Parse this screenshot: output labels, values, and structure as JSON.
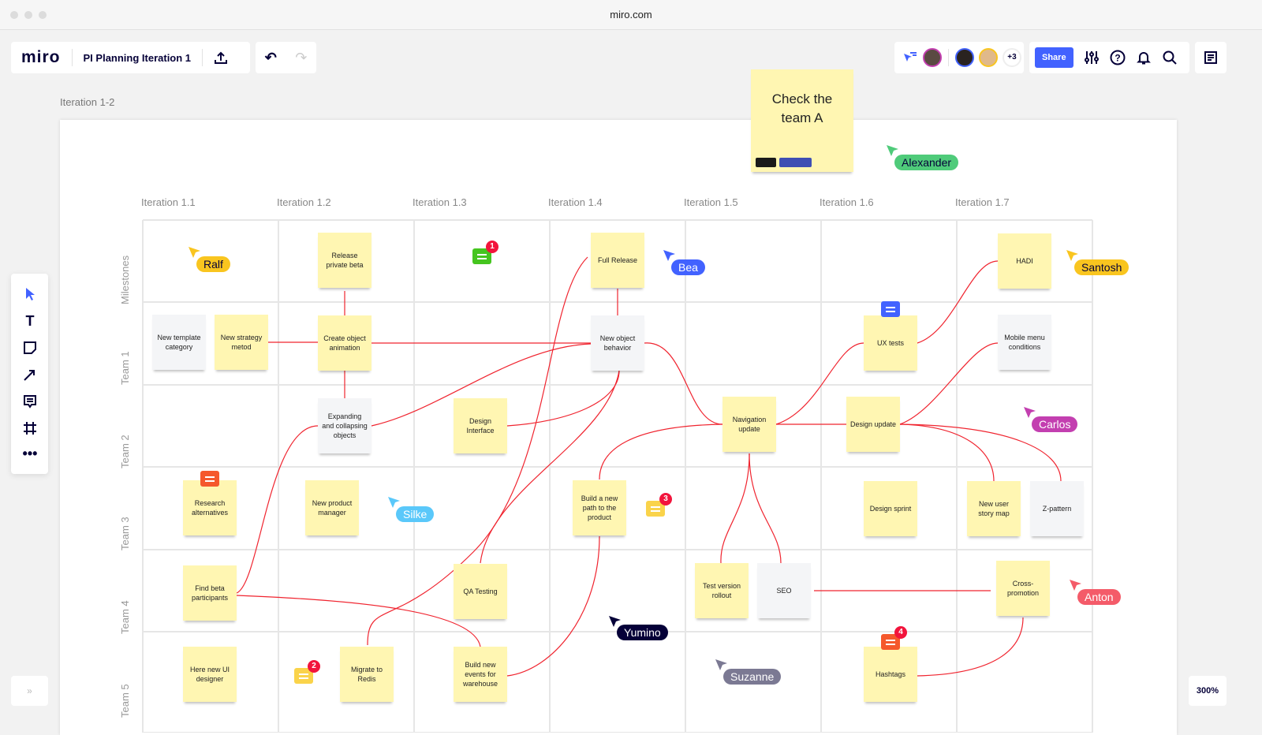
{
  "window": {
    "url": "miro.com"
  },
  "header": {
    "logo": "miro",
    "board_title": "PI Planning Iteration 1",
    "collaborators_more": "+3",
    "share_label": "Share"
  },
  "frame": {
    "label": "Iteration 1-2"
  },
  "columns": [
    "Iteration 1.1",
    "Iteration 1.2",
    "Iteration 1.3",
    "Iteration 1.4",
    "Iteration 1.5",
    "Iteration 1.6",
    "Iteration 1.7"
  ],
  "rows": [
    "Milestones",
    "Team 1",
    "Team 2",
    "Team 3",
    "Team 4",
    "Team 5"
  ],
  "floating_sticky": {
    "text": "Check the team A"
  },
  "stickies": [
    "Release private beta",
    "Full Release",
    "HADI",
    "New template category",
    "New strategy metod",
    "Create object animation",
    "New object behavior",
    "UX tests",
    "Mobile menu conditions",
    "Expanding and collapsing objects",
    "Design Interface",
    "Navigation update",
    "Design update",
    "Research alternatives",
    "New product manager",
    "Build a new path to the product",
    "Design sprint",
    "New user story map",
    "Z-pattern",
    "Find beta participants",
    "QA Testing",
    "Test version rollout",
    "SEO",
    "Cross-promotion",
    "Here new UI designer",
    "Migrate to Redis",
    "Build new events for warehouse",
    "Hashtags"
  ],
  "cursors": [
    {
      "name": "Ralf",
      "color": "#f9c51f"
    },
    {
      "name": "Bea",
      "color": "#4262ff"
    },
    {
      "name": "Santosh",
      "color": "#f9c51f"
    },
    {
      "name": "Alexander",
      "color": "#4fcb7a"
    },
    {
      "name": "Carlos",
      "color": "#c33fb0"
    },
    {
      "name": "Silke",
      "color": "#5ac8fa"
    },
    {
      "name": "Anton",
      "color": "#f45b69"
    },
    {
      "name": "Yumino",
      "color": "#050038"
    },
    {
      "name": "Suzanne",
      "color": "#7b7993"
    }
  ],
  "comments": [
    {
      "count": "1",
      "color": "#45c51f"
    },
    {
      "count": "",
      "color": "#4262ff"
    },
    {
      "count": "",
      "color": "#f5582c"
    },
    {
      "count": "3",
      "color": "#fad34a"
    },
    {
      "count": "2",
      "color": "#fad34a"
    },
    {
      "count": "4",
      "color": "#f5582c"
    }
  ],
  "zoom": {
    "level": "300%"
  },
  "toolbar": [
    "select-icon",
    "text-icon",
    "sticky-note-icon",
    "arrow-icon",
    "comment-icon",
    "frame-icon",
    "more-icon"
  ]
}
